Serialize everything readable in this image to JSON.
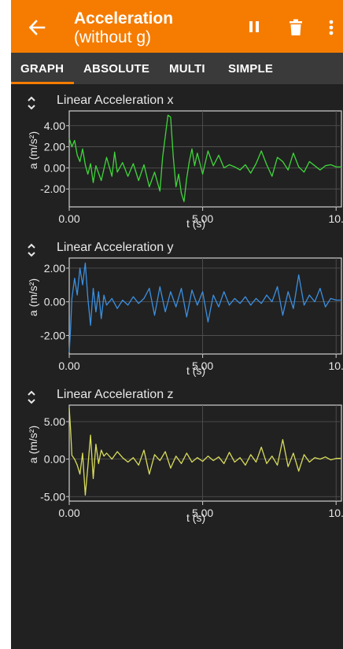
{
  "app": {
    "title_line1": "Acceleration",
    "title_line2": "(without g)"
  },
  "icons": {
    "back": "arrow-left-icon",
    "pause": "pause-icon",
    "delete": "trash-icon",
    "menu": "more-vert-icon",
    "expand": "unfold-icon"
  },
  "tabs": [
    {
      "label": "GRAPH",
      "selected": true
    },
    {
      "label": "ABSOLUTE",
      "selected": false
    },
    {
      "label": "MULTI",
      "selected": false
    },
    {
      "label": "SIMPLE",
      "selected": false
    }
  ],
  "colors": {
    "accent": "#f57c00",
    "background": "#212121",
    "tabbar": "#3a3a3a",
    "series_x": "#3fd63a",
    "series_y": "#3b8fe0",
    "series_z": "#d8dc5a"
  },
  "chart_data": [
    {
      "type": "line",
      "title": "Linear Acceleration x",
      "xlabel": "t (s)",
      "ylabel": "a (m/s²)",
      "xlim": [
        0,
        10.2
      ],
      "ylim": [
        -3.7,
        5.4
      ],
      "xticks": [
        0,
        5,
        10
      ],
      "xtick_labels": [
        "0.00",
        "5.00",
        "10."
      ],
      "yticks": [
        4,
        2,
        0,
        -2
      ],
      "ytick_labels": [
        "4.00",
        "2.00",
        "0.00",
        "-2.00"
      ],
      "grid": true,
      "color": "#3fd63a",
      "x": [
        0,
        0.1,
        0.2,
        0.3,
        0.4,
        0.5,
        0.6,
        0.7,
        0.8,
        0.9,
        1.0,
        1.2,
        1.4,
        1.6,
        1.7,
        1.8,
        2.0,
        2.2,
        2.4,
        2.6,
        2.8,
        3.0,
        3.2,
        3.4,
        3.5,
        3.6,
        3.7,
        3.8,
        3.9,
        4.0,
        4.1,
        4.2,
        4.3,
        4.4,
        4.5,
        4.6,
        4.7,
        4.8,
        5.0,
        5.2,
        5.4,
        5.6,
        5.8,
        6.0,
        6.2,
        6.4,
        6.6,
        6.8,
        7.0,
        7.2,
        7.4,
        7.6,
        7.8,
        8.0,
        8.2,
        8.4,
        8.6,
        8.8,
        9.0,
        9.2,
        9.4,
        9.6,
        9.8,
        10.0,
        10.2
      ],
      "y": [
        2.8,
        2.0,
        2.6,
        1.2,
        0.6,
        1.8,
        0.3,
        -0.6,
        0.4,
        -1.4,
        0.2,
        -1.2,
        1.0,
        -0.8,
        1.5,
        -0.4,
        0.5,
        -0.8,
        0.4,
        -1.2,
        0.3,
        -1.8,
        -0.4,
        -2.2,
        1.0,
        3.0,
        5.0,
        4.8,
        1.0,
        -1.8,
        -0.6,
        -2.4,
        -3.2,
        -1.0,
        0.6,
        1.8,
        0.2,
        1.4,
        -0.6,
        1.6,
        0.2,
        1.2,
        0.0,
        0.3,
        0.1,
        -0.2,
        0.3,
        -0.5,
        0.4,
        1.6,
        0.3,
        -0.8,
        1.0,
        0.6,
        -0.2,
        1.4,
        0.1,
        -0.4,
        0.6,
        0.2,
        -0.2,
        0.2,
        0.3,
        0.1,
        0.1
      ]
    },
    {
      "type": "line",
      "title": "Linear Acceleration y",
      "xlabel": "t (s)",
      "ylabel": "a (m/s²)",
      "xlim": [
        0,
        10.2
      ],
      "ylim": [
        -3.1,
        2.6
      ],
      "xticks": [
        0,
        5,
        10
      ],
      "xtick_labels": [
        "0.00",
        "5.00",
        "10."
      ],
      "yticks": [
        2,
        0,
        -2
      ],
      "ytick_labels": [
        "2.00",
        "0.00",
        "-2.00"
      ],
      "grid": true,
      "color": "#3b8fe0",
      "x": [
        0,
        0.05,
        0.1,
        0.2,
        0.3,
        0.4,
        0.5,
        0.6,
        0.7,
        0.8,
        0.9,
        1.0,
        1.1,
        1.2,
        1.3,
        1.4,
        1.6,
        1.8,
        2.0,
        2.2,
        2.4,
        2.6,
        2.8,
        3.0,
        3.2,
        3.4,
        3.6,
        3.8,
        4.0,
        4.2,
        4.4,
        4.6,
        4.8,
        5.0,
        5.2,
        5.4,
        5.6,
        5.8,
        6.0,
        6.2,
        6.4,
        6.6,
        6.8,
        7.0,
        7.2,
        7.4,
        7.6,
        7.8,
        8.0,
        8.2,
        8.4,
        8.6,
        8.8,
        9.0,
        9.2,
        9.4,
        9.6,
        9.8,
        10.0,
        10.2
      ],
      "y": [
        -3.0,
        -1.6,
        0.2,
        1.4,
        0.4,
        2.0,
        1.0,
        2.3,
        0.2,
        -1.4,
        0.8,
        -0.6,
        0.6,
        -1.0,
        0.4,
        -0.2,
        0.2,
        -0.4,
        0.1,
        -0.2,
        0.3,
        -0.1,
        0.2,
        0.8,
        -0.8,
        0.9,
        -0.6,
        0.6,
        -0.3,
        0.8,
        -0.9,
        0.7,
        -0.2,
        0.6,
        -1.2,
        0.4,
        -0.3,
        0.6,
        -0.2,
        0.2,
        -0.1,
        0.3,
        -0.2,
        0.2,
        -0.1,
        0.4,
        0.0,
        0.9,
        -0.8,
        0.6,
        -0.4,
        1.6,
        -0.2,
        0.4,
        0.0,
        0.8,
        -0.3,
        0.2,
        0.1,
        0.1
      ]
    },
    {
      "type": "line",
      "title": "Linear Acceleration z",
      "xlabel": "t (s)",
      "ylabel": "a (m/s²)",
      "xlim": [
        0,
        10.2
      ],
      "ylim": [
        -5.6,
        7.2
      ],
      "xticks": [
        0,
        5,
        10
      ],
      "xtick_labels": [
        "0.00",
        "5.00",
        "10."
      ],
      "yticks": [
        5,
        0,
        -5
      ],
      "ytick_labels": [
        "5.00",
        "0.00",
        "-5.00"
      ],
      "grid": true,
      "color": "#d8dc5a",
      "x": [
        0,
        0.05,
        0.1,
        0.2,
        0.3,
        0.4,
        0.5,
        0.6,
        0.7,
        0.8,
        0.9,
        1.0,
        1.1,
        1.2,
        1.3,
        1.4,
        1.6,
        1.8,
        2.0,
        2.2,
        2.4,
        2.6,
        2.8,
        3.0,
        3.2,
        3.4,
        3.6,
        3.8,
        4.0,
        4.2,
        4.4,
        4.6,
        4.8,
        5.0,
        5.2,
        5.4,
        5.6,
        5.8,
        6.0,
        6.2,
        6.4,
        6.6,
        6.8,
        7.0,
        7.2,
        7.4,
        7.6,
        7.8,
        8.0,
        8.2,
        8.4,
        8.6,
        8.8,
        9.0,
        9.2,
        9.4,
        9.6,
        9.8,
        10.0,
        10.2
      ],
      "y": [
        6.8,
        4.0,
        0.5,
        0.0,
        -0.8,
        -2.0,
        0.8,
        -4.8,
        -1.0,
        3.2,
        -2.6,
        2.0,
        -0.6,
        1.2,
        0.4,
        0.8,
        0.0,
        1.0,
        0.2,
        -0.4,
        0.2,
        -0.8,
        1.2,
        -2.0,
        0.6,
        -0.2,
        1.0,
        -1.2,
        0.4,
        -0.6,
        0.8,
        -0.4,
        0.2,
        -0.3,
        0.4,
        -0.2,
        0.3,
        -0.6,
        0.9,
        -0.4,
        0.2,
        -0.8,
        0.6,
        -0.4,
        1.6,
        -0.6,
        0.4,
        -0.8,
        2.6,
        -1.0,
        0.8,
        -1.6,
        0.6,
        -0.4,
        0.2,
        0.0,
        0.3,
        -0.1,
        0.1,
        0.1
      ]
    }
  ]
}
